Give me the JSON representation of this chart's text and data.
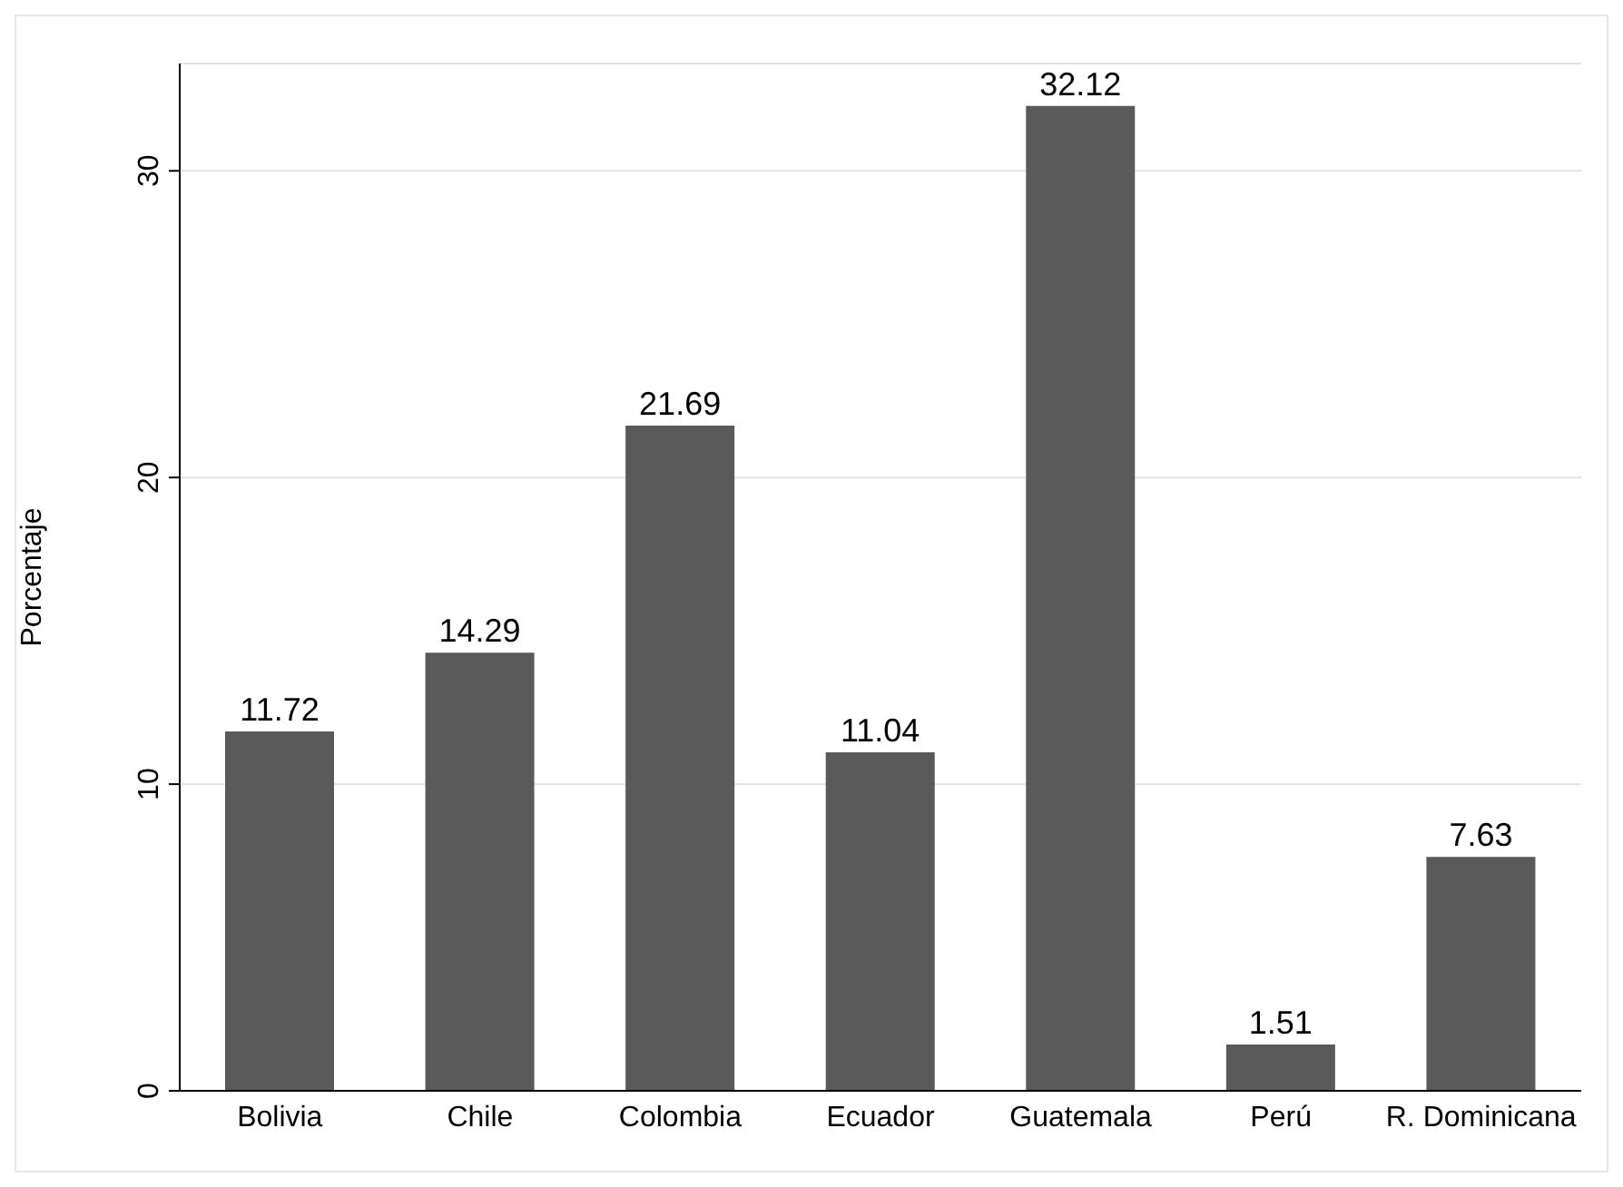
{
  "chart_data": {
    "type": "bar",
    "ylabel": "Porcentaje",
    "categories": [
      "Bolivia",
      "Chile",
      "Colombia",
      "Ecuador",
      "Guatemala",
      "Perú",
      "R. Dominicana"
    ],
    "values": [
      11.72,
      14.29,
      21.69,
      11.04,
      32.12,
      1.51,
      7.63
    ],
    "color": "#5a5a5a",
    "ylim": [
      0,
      33.5
    ],
    "yticks": [
      0,
      10,
      20,
      30
    ],
    "grid": "y",
    "data_labels": true
  }
}
